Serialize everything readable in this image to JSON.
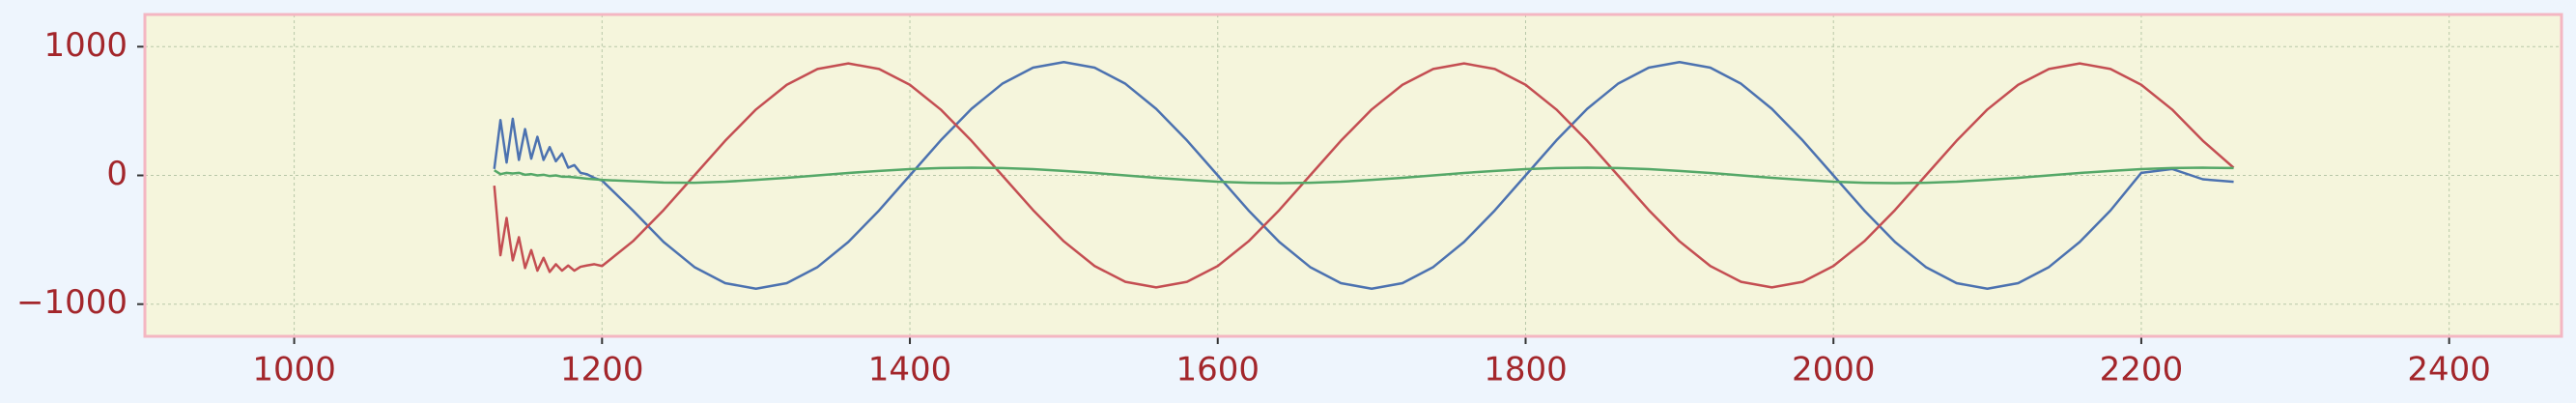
{
  "chart_data": {
    "type": "line",
    "x": [
      1130,
      1134,
      1138,
      1142,
      1146,
      1150,
      1154,
      1158,
      1162,
      1166,
      1170,
      1174,
      1178,
      1182,
      1186,
      1190,
      1195,
      1200,
      1220,
      1240,
      1260,
      1280,
      1300,
      1320,
      1340,
      1360,
      1380,
      1400,
      1420,
      1440,
      1460,
      1480,
      1500,
      1520,
      1540,
      1560,
      1580,
      1600,
      1620,
      1640,
      1660,
      1680,
      1700,
      1720,
      1740,
      1760,
      1780,
      1800,
      1820,
      1840,
      1860,
      1880,
      1900,
      1920,
      1940,
      1960,
      1980,
      2000,
      2020,
      2040,
      2060,
      2080,
      2100,
      2120,
      2140,
      2160,
      2180,
      2200,
      2220,
      2240,
      2260
    ],
    "series": [
      {
        "color": "#4c72b0",
        "values": [
          50,
          430,
          100,
          440,
          120,
          360,
          130,
          300,
          120,
          220,
          110,
          170,
          60,
          80,
          20,
          10,
          -20,
          -40,
          -272,
          -517,
          -712,
          -837,
          -880,
          -837,
          -712,
          -517,
          -272,
          0,
          272,
          517,
          712,
          837,
          880,
          837,
          712,
          517,
          272,
          0,
          -272,
          -517,
          -712,
          -837,
          -880,
          -837,
          -712,
          -517,
          -272,
          0,
          272,
          517,
          712,
          837,
          880,
          837,
          712,
          517,
          272,
          0,
          -272,
          -517,
          -712,
          -837,
          -880,
          -837,
          -712,
          -517,
          -272,
          20,
          50,
          -30,
          -50
        ]
      },
      {
        "color": "#c44e52",
        "values": [
          -80,
          -620,
          -330,
          -660,
          -480,
          -720,
          -580,
          -740,
          -640,
          -750,
          -690,
          -740,
          -700,
          -740,
          -710,
          -700,
          -690,
          -704,
          -512,
          -269,
          0,
          269,
          512,
          704,
          827,
          870,
          827,
          704,
          512,
          269,
          0,
          -269,
          -512,
          -704,
          -827,
          -870,
          -827,
          -704,
          -512,
          -269,
          0,
          269,
          512,
          704,
          827,
          870,
          827,
          704,
          512,
          269,
          0,
          -269,
          -512,
          -704,
          -827,
          -870,
          -827,
          -704,
          -512,
          -269,
          0,
          269,
          512,
          704,
          827,
          870,
          827,
          704,
          512,
          269,
          60
        ]
      },
      {
        "color": "#55a868",
        "values": [
          40,
          10,
          20,
          15,
          20,
          5,
          10,
          0,
          5,
          -5,
          0,
          -10,
          -10,
          -15,
          -20,
          -25,
          -30,
          -35,
          -45,
          -55,
          -57,
          -49,
          -35,
          -19,
          0,
          19,
          35,
          49,
          57,
          60,
          57,
          49,
          35,
          19,
          0,
          -19,
          -35,
          -49,
          -57,
          -60,
          -57,
          -49,
          -35,
          -19,
          0,
          19,
          35,
          49,
          57,
          60,
          57,
          49,
          35,
          19,
          0,
          -19,
          -35,
          -49,
          -57,
          -60,
          -57,
          -49,
          -35,
          -19,
          0,
          19,
          35,
          49,
          57,
          60,
          57
        ]
      }
    ],
    "xlim": [
      903,
      2473
    ],
    "ylim": [
      -1250,
      1250
    ],
    "xticks": [
      1000,
      1200,
      1400,
      1600,
      1800,
      2000,
      2200,
      2400
    ],
    "yticks": [
      {
        "value": -1000,
        "label": "−1000"
      },
      0,
      1000
    ],
    "grid": true
  }
}
